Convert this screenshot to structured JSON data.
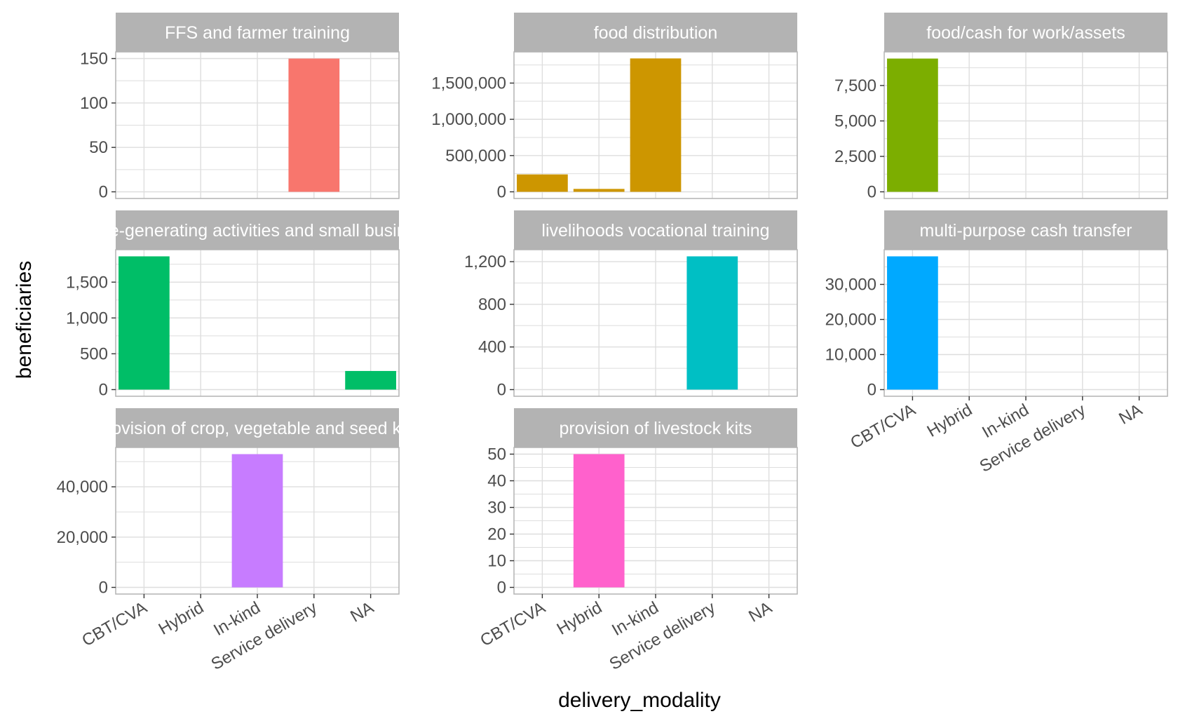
{
  "chart_data": {
    "type": "bar",
    "layout": "facet_wrap",
    "xlabel": "delivery_modality",
    "ylabel": "beneficiaries",
    "categories": [
      "CBT/CVA",
      "Hybrid",
      "In-kind",
      "Service delivery",
      "NA"
    ],
    "grid": true,
    "legend": "none",
    "colors": {
      "strip_background": "#b3b3b3",
      "grid_line": "#dedede",
      "panel_border": "#b3b3b3"
    },
    "panels": [
      {
        "title": "FFS and farmer training",
        "color": "#F8766D",
        "ylim": [
          -7.5,
          157.5
        ],
        "yticks": [
          0,
          50,
          100,
          150
        ],
        "ytick_labels": [
          "0",
          "50",
          "100",
          "150"
        ],
        "values": [
          null,
          null,
          null,
          150,
          null
        ]
      },
      {
        "title": "food distribution",
        "color": "#CD9600",
        "ylim": [
          -92000,
          1930000
        ],
        "yticks": [
          0,
          500000,
          1000000,
          1500000
        ],
        "ytick_labels": [
          "0",
          "500,000",
          "1,000,000",
          "1,500,000"
        ],
        "values": [
          240000,
          40000,
          1840000,
          null,
          null
        ]
      },
      {
        "title": "food/cash for work/assets",
        "color": "#7CAE00",
        "ylim": [
          -470,
          9870
        ],
        "yticks": [
          0,
          2500,
          5000,
          7500
        ],
        "ytick_labels": [
          "0",
          "2,500",
          "5,000",
          "7,500"
        ],
        "values": [
          9400,
          null,
          null,
          null,
          null
        ]
      },
      {
        "title": "income-generating activities and small businesses",
        "color": "#00BE67",
        "ylim": [
          -93,
          1953
        ],
        "yticks": [
          0,
          500,
          1000,
          1500
        ],
        "ytick_labels": [
          "0",
          "500",
          "1,000",
          "1,500"
        ],
        "values": [
          1860,
          null,
          null,
          null,
          260
        ]
      },
      {
        "title": "livelihoods vocational training",
        "color": "#00BFC4",
        "ylim": [
          -62.5,
          1312.5
        ],
        "yticks": [
          0,
          400,
          800,
          1200
        ],
        "ytick_labels": [
          "0",
          "400",
          "800",
          "1,200"
        ],
        "values": [
          null,
          null,
          null,
          1250,
          null
        ]
      },
      {
        "title": "multi-purpose cash transfer",
        "color": "#00A9FF",
        "ylim": [
          -1900,
          39900
        ],
        "yticks": [
          0,
          10000,
          20000,
          30000
        ],
        "ytick_labels": [
          "0",
          "10,000",
          "20,000",
          "30,000"
        ],
        "values": [
          38000,
          null,
          null,
          null,
          null
        ]
      },
      {
        "title": "provision of crop, vegetable and seed kits",
        "color": "#C77CFF",
        "ylim": [
          -2650,
          55650
        ],
        "yticks": [
          0,
          20000,
          40000
        ],
        "ytick_labels": [
          "0",
          "20,000",
          "40,000"
        ],
        "values": [
          null,
          null,
          53000,
          null,
          null
        ]
      },
      {
        "title": "provision of livestock kits",
        "color": "#FF61CC",
        "ylim": [
          -2.5,
          52.5
        ],
        "yticks": [
          0,
          10,
          20,
          30,
          40,
          50
        ],
        "ytick_labels": [
          "0",
          "10",
          "20",
          "30",
          "40",
          "50"
        ],
        "values": [
          null,
          50,
          null,
          null,
          null
        ]
      }
    ]
  }
}
